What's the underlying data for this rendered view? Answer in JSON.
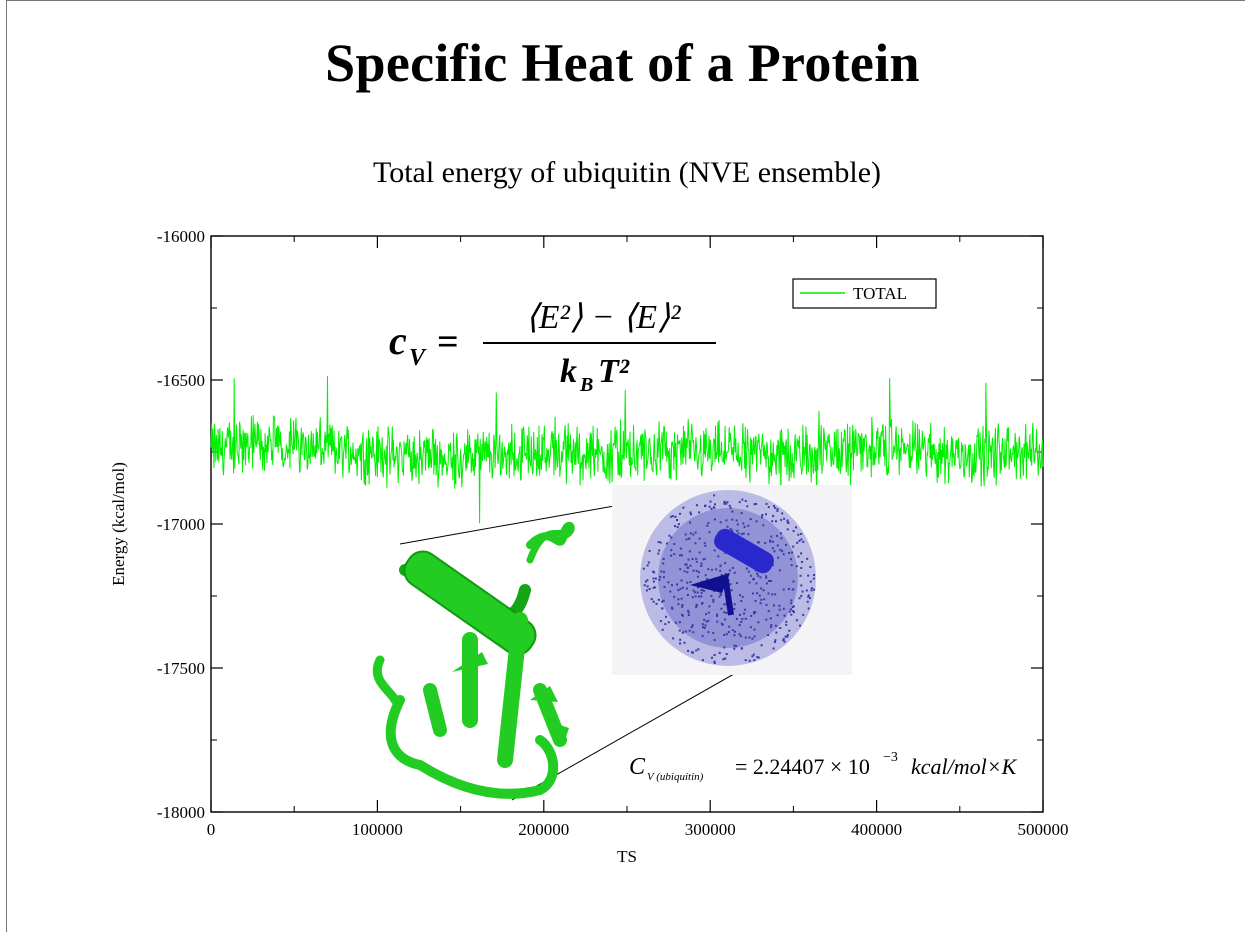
{
  "slide": {
    "title": "Specific Heat of a Protein"
  },
  "formulas": {
    "cv_definition": {
      "lhs_symbol": "c",
      "lhs_subscript": "V",
      "numerator": "⟨E²⟩ − ⟨E⟩²",
      "denominator_symbol": "k",
      "denominator_subscript": "B",
      "denominator_rest": "T²"
    },
    "cv_result": {
      "symbol": "C",
      "subscript": "V (ubiquitin)",
      "equals_value": "= 2.24407 × 10",
      "exponent": "−3",
      "units": "kcal/mol×K"
    }
  },
  "colors": {
    "series": "#00ee00",
    "protein": "#22cc22",
    "water": "#4a4ab8",
    "helix_blue": "#2222cc"
  },
  "chart_data": {
    "type": "line",
    "title": "Total energy of ubiquitin (NVE ensemble)",
    "xlabel": "TS",
    "ylabel": "Energy (kcal/mol)",
    "xlim": [
      0,
      500000
    ],
    "ylim": [
      -18000,
      -16000
    ],
    "x_ticks": [
      0,
      100000,
      200000,
      300000,
      400000,
      500000
    ],
    "y_ticks": [
      -18000,
      -17500,
      -17000,
      -16500,
      -16000
    ],
    "x_tick_labels": [
      "0",
      "100000",
      "200000",
      "300000",
      "400000",
      "500000"
    ],
    "y_tick_labels": [
      "-18000",
      "-17500",
      "-17000",
      "-16500",
      "-16000"
    ],
    "legend": {
      "position": "top-right",
      "entries": [
        "TOTAL"
      ]
    },
    "grid": false,
    "series": [
      {
        "name": "TOTAL",
        "mean": -16750,
        "fluctuation_range": [
          -17010,
          -16430
        ],
        "summary_x": [
          0,
          50000,
          100000,
          150000,
          200000,
          250000,
          300000,
          350000,
          400000,
          450000,
          500000
        ],
        "summary_y": [
          -16740,
          -16720,
          -16760,
          -16770,
          -16750,
          -16760,
          -16740,
          -16760,
          -16730,
          -16760,
          -16750
        ]
      }
    ]
  }
}
